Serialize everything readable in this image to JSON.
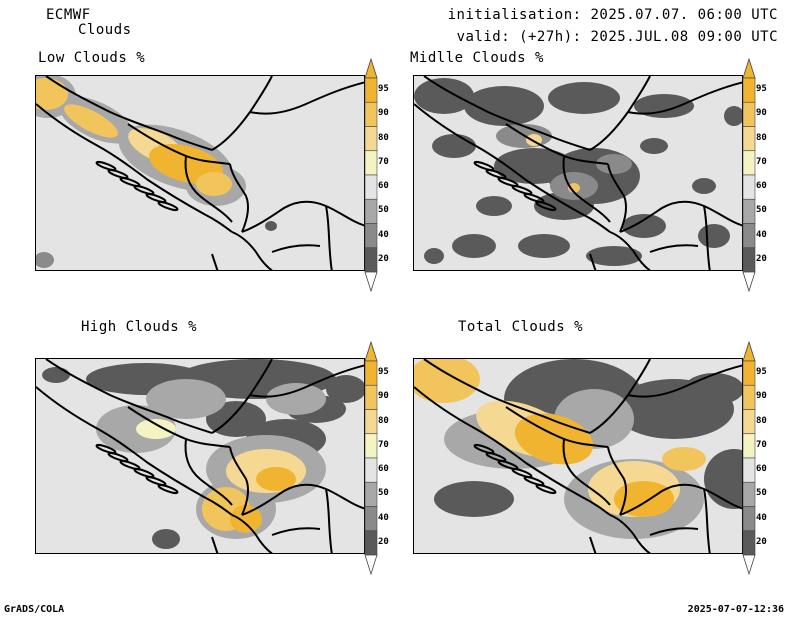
{
  "header": {
    "model": "ECMWF",
    "product": "Clouds",
    "init": "initialisation: 2025.07.07. 06:00 UTC",
    "valid": "valid: (+27h): 2025.JUL.08 09:00 UTC"
  },
  "panels": [
    {
      "title": "Low Clouds %"
    },
    {
      "title": "Midlle Clouds %"
    },
    {
      "title": "High Clouds %"
    },
    {
      "title": "Total Clouds %"
    }
  ],
  "colorbar": {
    "levels": [
      "95",
      "90",
      "80",
      "70",
      "60",
      "50",
      "40",
      "20"
    ],
    "colors": [
      "#f0b430",
      "#f2c45c",
      "#f5d992",
      "#f6f3c2",
      "#e4e4e4",
      "#a8a8a8",
      "#8a8a8a",
      "#5a5a5a"
    ],
    "top_color": "#f0b430",
    "bottom_color": "#ffffff"
  },
  "footer": {
    "left": "GrADS/COLA",
    "right": "2025-07-07-12:36"
  },
  "colors": {
    "background": "#e4e4e4",
    "dark_gray": "#5a5a5a",
    "mid_gray": "#8a8a8a",
    "light_gray": "#a8a8a8",
    "pale_yellow": "#f6f3c2",
    "light_orange": "#f5d992",
    "orange": "#f2c45c",
    "deep_orange": "#f0b430"
  }
}
